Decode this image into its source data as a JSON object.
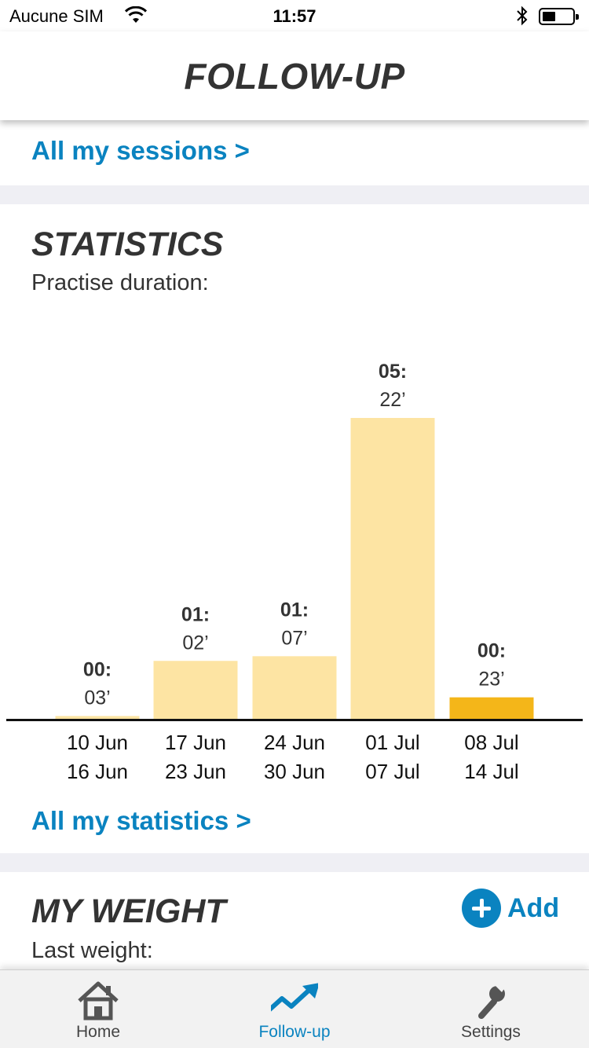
{
  "status_bar": {
    "carrier": "Aucune SIM",
    "time": "11:57"
  },
  "header": {
    "title": "FOLLOW-UP"
  },
  "sessions": {
    "link_label": "All my sessions >"
  },
  "statistics": {
    "title": "STATISTICS",
    "subtitle": "Practise duration:",
    "link_label": "All my statistics >"
  },
  "chart_data": {
    "type": "bar",
    "categories": [
      [
        "10 Jun",
        "16 Jun"
      ],
      [
        "17 Jun",
        "23 Jun"
      ],
      [
        "24 Jun",
        "30 Jun"
      ],
      [
        "01 Jul",
        "07 Jul"
      ],
      [
        "08 Jul",
        "14 Jul"
      ]
    ],
    "values": [
      3,
      62,
      67,
      322,
      23
    ],
    "value_labels": [
      [
        "00:",
        "03’"
      ],
      [
        "01:",
        "02’"
      ],
      [
        "01:",
        "07’"
      ],
      [
        "05:",
        "22’"
      ],
      [
        "00:",
        "23’"
      ]
    ],
    "highlight_index": 4,
    "colors": {
      "bar": "#fde4a3",
      "highlight": "#f4b619",
      "axis": "#111111"
    }
  },
  "weight": {
    "title": "MY WEIGHT",
    "subtitle": "Last weight:",
    "add_label": "Add"
  },
  "tabbar": {
    "tabs": [
      {
        "label": "Home",
        "icon": "home-icon",
        "active": false
      },
      {
        "label": "Follow-up",
        "icon": "trend-up-icon",
        "active": true
      },
      {
        "label": "Settings",
        "icon": "wrench-icon",
        "active": false
      }
    ]
  },
  "colors": {
    "accent": "#0a83c0",
    "text": "#333333",
    "separator": "#efeff4"
  }
}
